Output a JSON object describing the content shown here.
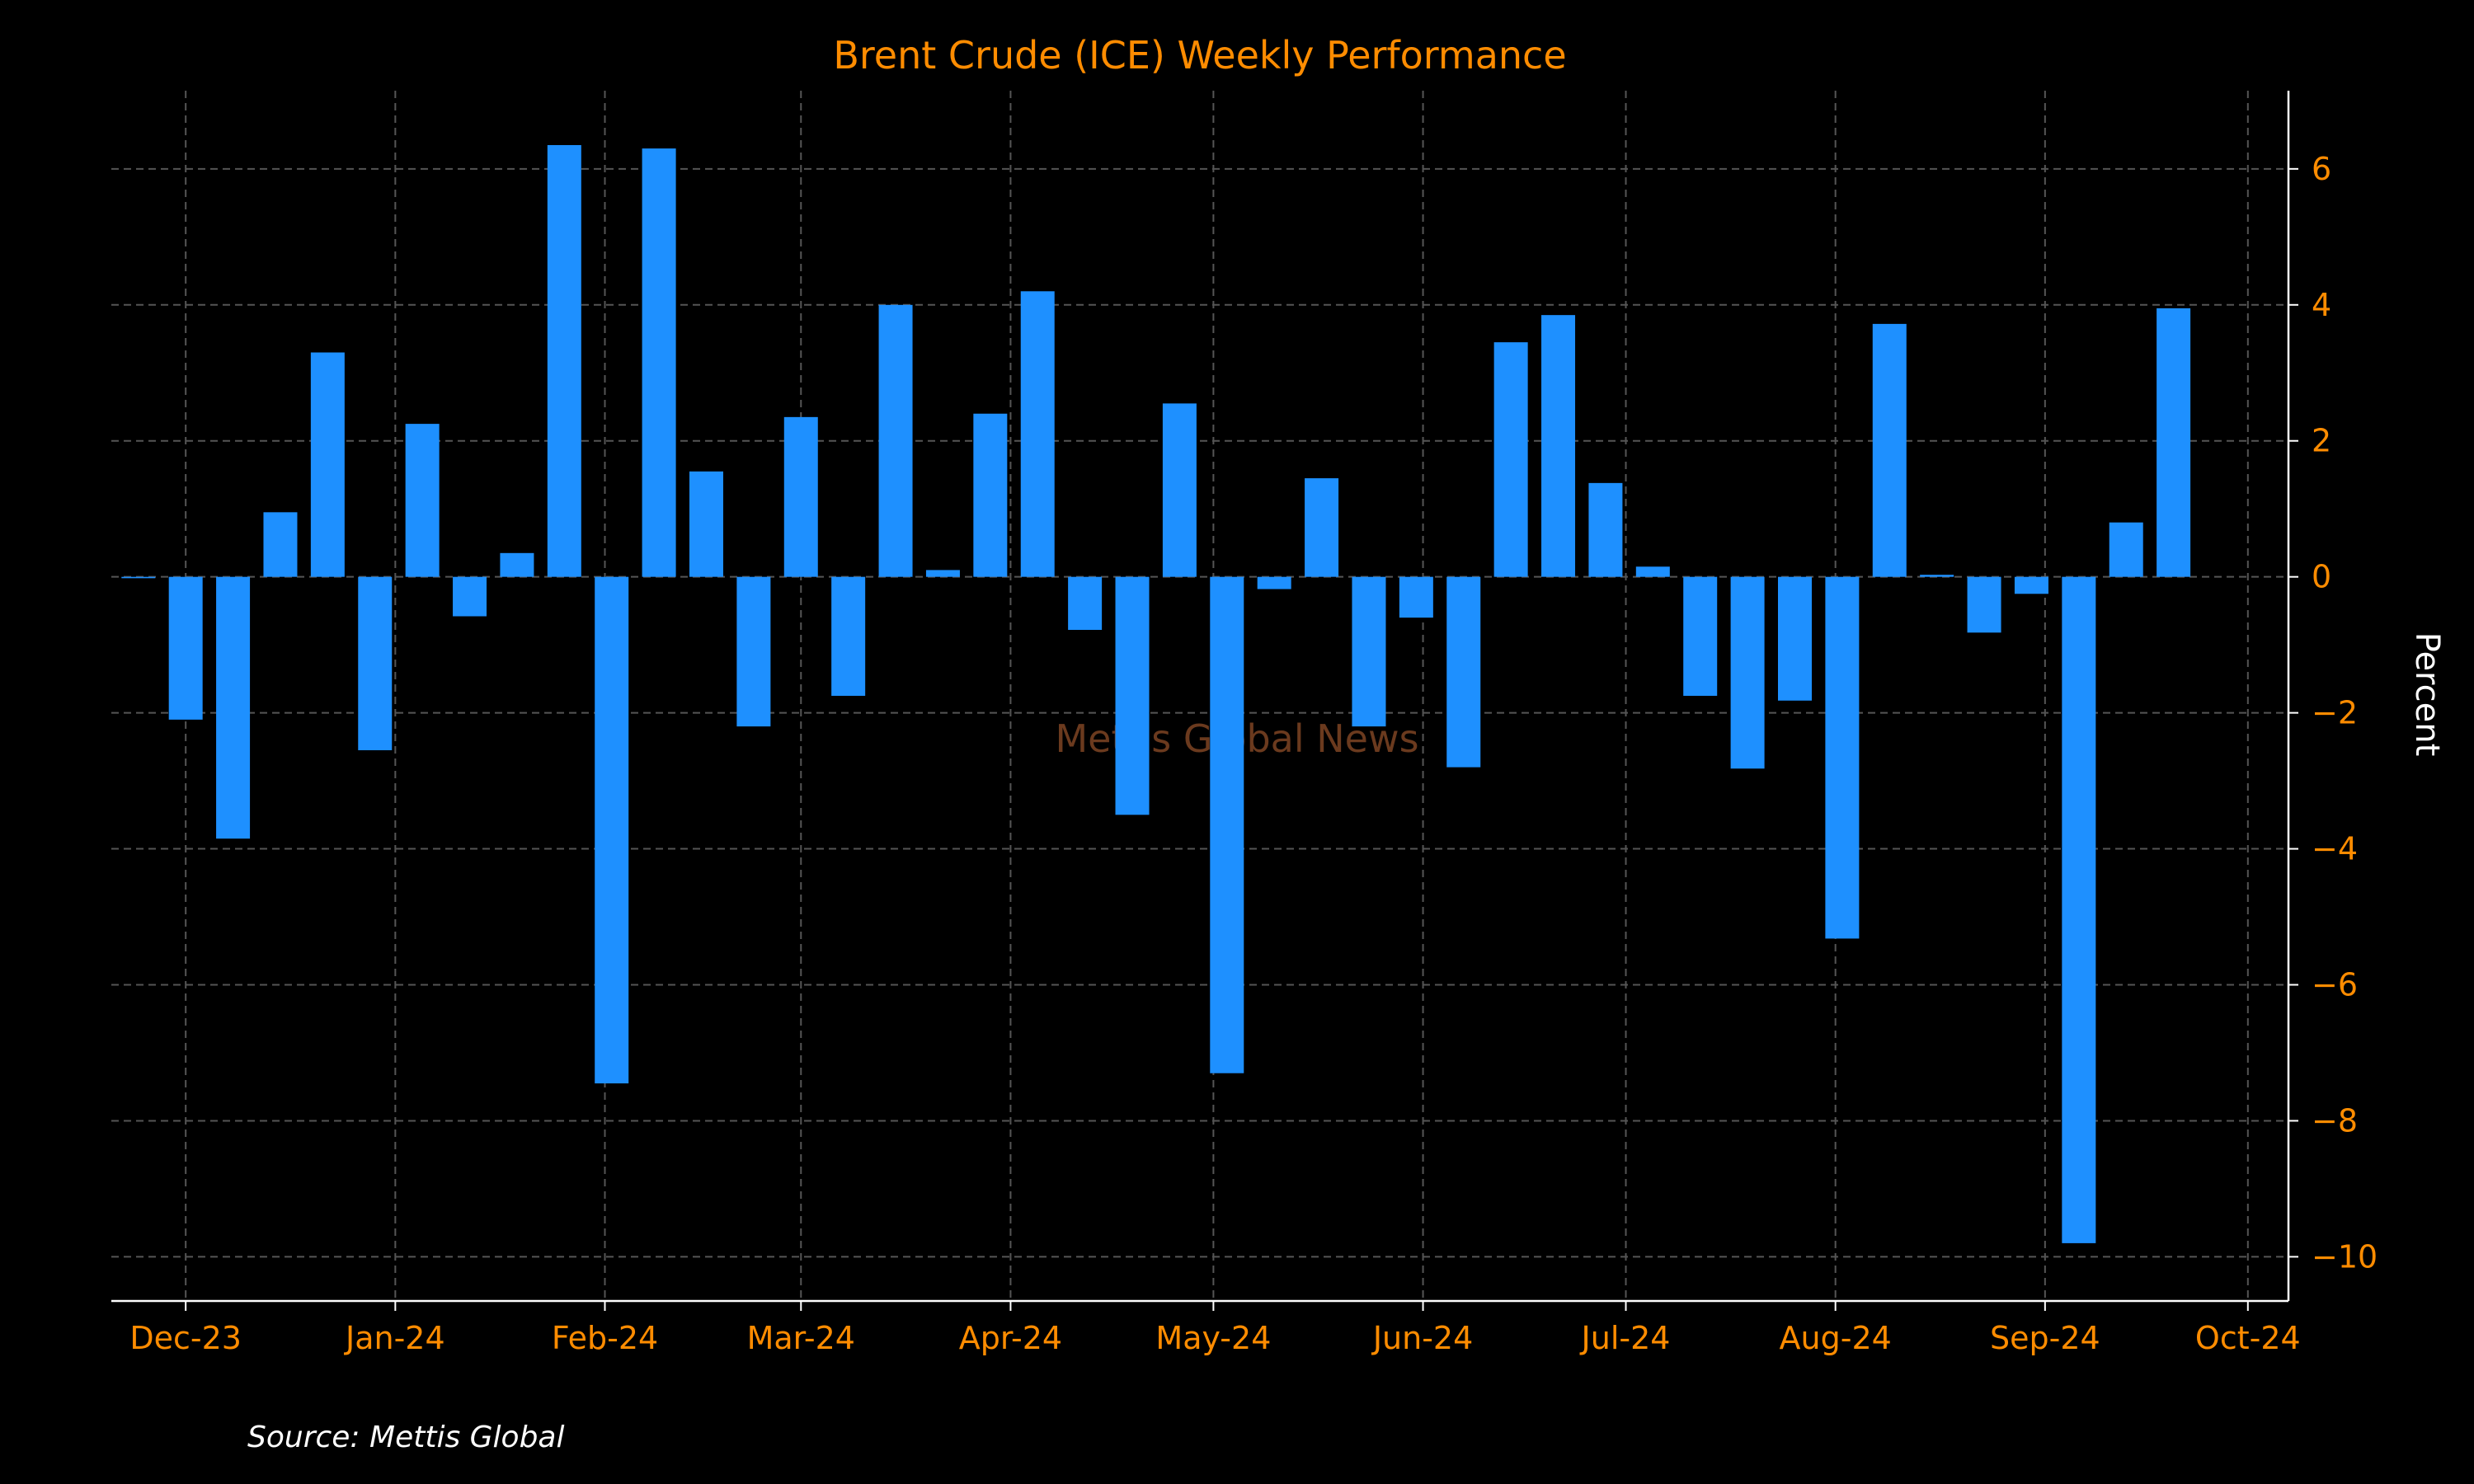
{
  "chart_data": {
    "type": "bar",
    "title": "Brent Crude (ICE) Weekly Performance",
    "ylabel": "Percent",
    "ylim": [
      -10.65,
      7.15
    ],
    "xlim": [
      "2023-11-20",
      "2024-10-07"
    ],
    "yticks": [
      6,
      4,
      2,
      0,
      -2,
      -4,
      -6,
      -8,
      -10
    ],
    "xticks": [
      {
        "date": "2023-12-01",
        "label": "Dec-23"
      },
      {
        "date": "2024-01-01",
        "label": "Jan-24"
      },
      {
        "date": "2024-02-01",
        "label": "Feb-24"
      },
      {
        "date": "2024-03-01",
        "label": "Mar-24"
      },
      {
        "date": "2024-04-01",
        "label": "Apr-24"
      },
      {
        "date": "2024-05-01",
        "label": "May-24"
      },
      {
        "date": "2024-06-01",
        "label": "Jun-24"
      },
      {
        "date": "2024-07-01",
        "label": "Jul-24"
      },
      {
        "date": "2024-08-01",
        "label": "Aug-24"
      },
      {
        "date": "2024-09-01",
        "label": "Sep-24"
      },
      {
        "date": "2024-10-01",
        "label": "Oct-24"
      }
    ],
    "x": [
      "2023-11-24",
      "2023-12-01",
      "2023-12-08",
      "2023-12-15",
      "2023-12-22",
      "2023-12-29",
      "2024-01-05",
      "2024-01-12",
      "2024-01-19",
      "2024-01-26",
      "2024-02-02",
      "2024-02-09",
      "2024-02-16",
      "2024-02-23",
      "2024-03-01",
      "2024-03-08",
      "2024-03-15",
      "2024-03-22",
      "2024-03-29",
      "2024-04-05",
      "2024-04-12",
      "2024-04-19",
      "2024-04-26",
      "2024-05-03",
      "2024-05-10",
      "2024-05-17",
      "2024-05-24",
      "2024-05-31",
      "2024-06-07",
      "2024-06-14",
      "2024-06-21",
      "2024-06-28",
      "2024-07-05",
      "2024-07-12",
      "2024-07-19",
      "2024-07-26",
      "2024-08-02",
      "2024-08-09",
      "2024-08-16",
      "2024-08-23",
      "2024-08-30",
      "2024-09-06",
      "2024-09-13",
      "2024-09-20"
    ],
    "values": [
      -0.02,
      -2.1,
      -3.85,
      0.95,
      3.3,
      -2.55,
      2.25,
      -0.58,
      0.35,
      6.35,
      -7.45,
      6.3,
      1.55,
      -2.2,
      2.35,
      -1.75,
      4.0,
      0.1,
      2.4,
      4.2,
      -0.78,
      -3.5,
      2.55,
      -7.3,
      -0.18,
      1.45,
      -2.2,
      -0.6,
      -2.8,
      3.45,
      3.85,
      1.38,
      0.15,
      -1.75,
      -2.82,
      -1.82,
      -5.32,
      3.72,
      0.03,
      -0.82,
      -0.25,
      -9.8,
      0.8,
      3.95
    ],
    "grid": true,
    "legend": false,
    "colors": {
      "bar": "#1e90ff",
      "title": "#ff8c00",
      "ticks": "#ff8c00",
      "axis": "#ffffff",
      "grid": "#555555",
      "background": "#000000",
      "watermark": "#6b3a1e"
    }
  },
  "watermark": "Mettis Global News",
  "source": "Source: Mettis Global"
}
